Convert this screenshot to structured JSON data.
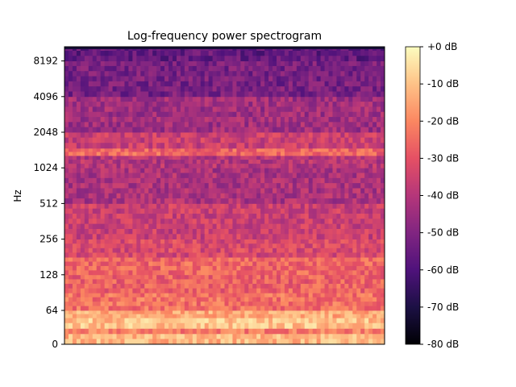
{
  "chart_data": {
    "type": "heatmap",
    "title": "Log-frequency power spectrogram",
    "xlabel": "",
    "ylabel": "Hz",
    "y_scale": "log2",
    "y_ticks": [
      "0",
      "64",
      "128",
      "256",
      "512",
      "1024",
      "2048",
      "4096",
      "8192"
    ],
    "x_ticks": [],
    "colormap": "magma",
    "colorbar": {
      "range_db": [
        -80,
        0
      ],
      "ticks": [
        "+0 dB",
        "-10 dB",
        "-20 dB",
        "-30 dB",
        "-40 dB",
        "-50 dB",
        "-60 dB",
        "-70 dB",
        "-80 dB"
      ]
    },
    "bands": [
      {
        "hz_low": 0,
        "hz_high": 20,
        "db": -12
      },
      {
        "hz_low": 20,
        "hz_high": 30,
        "db": -22
      },
      {
        "hz_low": 30,
        "hz_high": 50,
        "db": -10
      },
      {
        "hz_low": 50,
        "hz_high": 64,
        "db": -14
      },
      {
        "hz_low": 64,
        "hz_high": 90,
        "db": -24
      },
      {
        "hz_low": 90,
        "hz_high": 128,
        "db": -27
      },
      {
        "hz_low": 128,
        "hz_high": 180,
        "db": -26
      },
      {
        "hz_low": 180,
        "hz_high": 256,
        "db": -33
      },
      {
        "hz_low": 256,
        "hz_high": 512,
        "db": -36
      },
      {
        "hz_low": 512,
        "hz_high": 1024,
        "db": -42
      },
      {
        "hz_low": 1024,
        "hz_high": 1300,
        "db": -40
      },
      {
        "hz_low": 1300,
        "hz_high": 1500,
        "db": -26
      },
      {
        "hz_low": 1500,
        "hz_high": 2048,
        "db": -36
      },
      {
        "hz_low": 2048,
        "hz_high": 4096,
        "db": -44
      },
      {
        "hz_low": 4096,
        "hz_high": 8192,
        "db": -52
      },
      {
        "hz_low": 8192,
        "hz_high": 11025,
        "db": -56
      }
    ]
  },
  "colors": {
    "magma": [
      "#000004",
      "#1c1044",
      "#4f127b",
      "#812581",
      "#b5367a",
      "#e55064",
      "#fb8761",
      "#fec287",
      "#fcfdbf"
    ]
  }
}
